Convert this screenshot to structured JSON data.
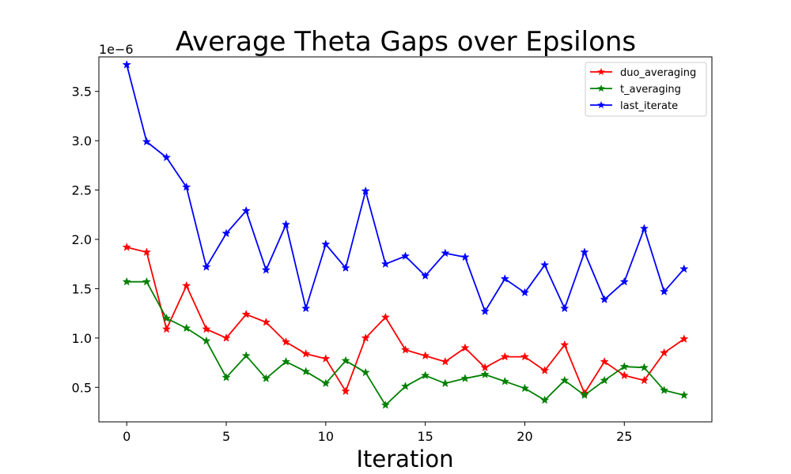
{
  "chart_data": {
    "type": "line",
    "title": "Average Theta Gaps over Epsilons",
    "xlabel": "Iteration",
    "ylabel": "",
    "y_scale_label": "1e−6",
    "x": [
      0,
      1,
      2,
      3,
      4,
      5,
      6,
      7,
      8,
      9,
      10,
      11,
      12,
      13,
      14,
      15,
      16,
      17,
      18,
      19,
      20,
      21,
      22,
      23,
      24,
      25,
      26,
      27,
      28
    ],
    "xlim": [
      -1.4,
      29.4
    ],
    "ylim": [
      0.15,
      3.85
    ],
    "x_ticks": [
      0,
      5,
      10,
      15,
      20,
      25
    ],
    "y_ticks": [
      0.5,
      1.0,
      1.5,
      2.0,
      2.5,
      3.0,
      3.5
    ],
    "x_tick_labels": [
      "0",
      "5",
      "10",
      "15",
      "20",
      "25"
    ],
    "y_tick_labels": [
      "0.5",
      "1.0",
      "1.5",
      "2.0",
      "2.5",
      "3.0",
      "3.5"
    ],
    "grid": false,
    "legend_position": "top-right",
    "marker": "star",
    "series": [
      {
        "name": "duo_averaging",
        "color": "#ff0000",
        "values": [
          1.92,
          1.87,
          1.09,
          1.53,
          1.09,
          1.0,
          1.24,
          1.16,
          0.96,
          0.84,
          0.79,
          0.46,
          1.0,
          1.21,
          0.88,
          0.82,
          0.76,
          0.9,
          0.7,
          0.81,
          0.81,
          0.67,
          0.93,
          0.44,
          0.76,
          0.62,
          0.57,
          0.85,
          0.99
        ]
      },
      {
        "name": "t_averaging",
        "color": "#008000",
        "values": [
          1.57,
          1.57,
          1.2,
          1.1,
          0.97,
          0.6,
          0.82,
          0.59,
          0.76,
          0.66,
          0.54,
          0.77,
          0.65,
          0.32,
          0.51,
          0.62,
          0.54,
          0.59,
          0.63,
          0.56,
          0.49,
          0.37,
          0.57,
          0.42,
          0.57,
          0.71,
          0.7,
          0.47,
          0.42
        ]
      },
      {
        "name": "last_iterate",
        "color": "#0000ff",
        "values": [
          3.77,
          2.99,
          2.83,
          2.53,
          1.72,
          2.06,
          2.29,
          1.69,
          2.15,
          1.3,
          1.95,
          1.71,
          2.49,
          1.75,
          1.83,
          1.63,
          1.86,
          1.82,
          1.27,
          1.6,
          1.46,
          1.74,
          1.3,
          1.87,
          1.39,
          1.57,
          2.11,
          1.47,
          1.7
        ]
      }
    ]
  }
}
